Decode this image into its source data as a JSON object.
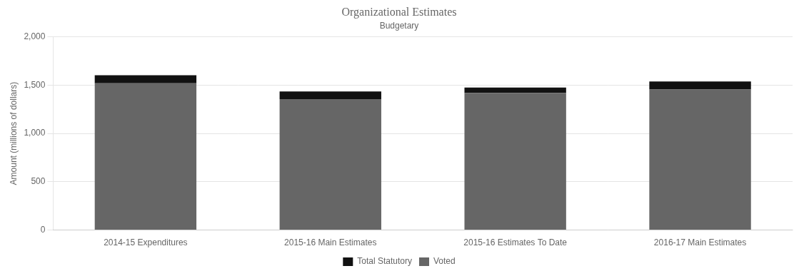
{
  "chart_data": {
    "type": "bar",
    "title": "Organizational Estimates",
    "subtitle": "Budgetary",
    "ylabel": "Amount (millions of dollars)",
    "categories": [
      "2014-15 Expenditures",
      "2015-16 Main Estimates",
      "2015-16 Estimates To Date",
      "2016-17 Main Estimates"
    ],
    "series": [
      {
        "name": "Voted",
        "color": "#666666",
        "values": [
          1520,
          1355,
          1420,
          1455
        ]
      },
      {
        "name": "Total Statutory",
        "color": "#111111",
        "values": [
          82,
          80,
          55,
          82
        ]
      }
    ],
    "stacked": true,
    "ylim": [
      0,
      2000
    ],
    "yticks": [
      0,
      500,
      {
        "value": 1000,
        "label": "1,000"
      },
      {
        "value": 1500,
        "label": "1,500"
      },
      {
        "value": 2000,
        "label": "2,000"
      }
    ],
    "grid": true,
    "legend": "bottom"
  }
}
